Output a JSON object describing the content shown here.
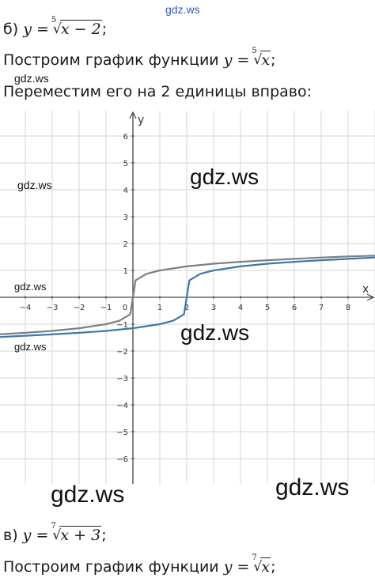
{
  "lines": {
    "b_label": "б)",
    "b_lhs": "y =",
    "b_index": "5",
    "b_radicand": "x − 2",
    "b_tail": ";",
    "step1_text": "Построим график функции",
    "step1_lhs": "y =",
    "step1_index": "5",
    "step1_radicand": "x",
    "step1_tail": ";",
    "step2_text": "Переместим его на 2 единицы вправо:",
    "v_label": "в)",
    "v_lhs": "y =",
    "v_index": "7",
    "v_radicand": "x + 3",
    "v_tail": ";",
    "step3_text": "Построим график функции",
    "step3_lhs": "y =",
    "step3_index": "7",
    "step3_radicand": "x",
    "step3_tail": ";"
  },
  "watermarks": [
    "gdz.ws",
    "gdz.ws",
    "gdz.ws",
    "gdz.ws",
    "gdz.ws",
    "gdz.ws",
    "gdz.ws",
    "gdz.ws",
    "gdz.ws"
  ],
  "chart_data": {
    "type": "line",
    "xlabel": "x",
    "ylabel": "y",
    "xlim": [
      -5,
      9
    ],
    "ylim": [
      -7,
      7
    ],
    "x_ticks": [
      -4,
      -3,
      -2,
      -1,
      0,
      1,
      2,
      3,
      4,
      5,
      6,
      7,
      8
    ],
    "y_ticks": [
      -6,
      -5,
      -4,
      -3,
      -2,
      -1,
      1,
      2,
      3,
      4,
      5,
      6
    ],
    "tick_labels_x": [
      "−4",
      "−3",
      "−2",
      "−1",
      "0",
      "1",
      "2",
      "3",
      "4",
      "5",
      "6",
      "7",
      "8"
    ],
    "tick_labels_y": [
      "−6",
      "−5",
      "−4",
      "−3",
      "−2",
      "−1",
      "1",
      "2",
      "3",
      "4",
      "5",
      "6"
    ],
    "grid": true,
    "series": [
      {
        "color": "#7f7f7f",
        "x": [
          -5,
          -4,
          -3,
          -2,
          -1,
          -0.5,
          -0.1,
          0,
          0.1,
          0.5,
          1,
          2,
          3,
          4,
          5,
          6,
          7,
          8,
          9
        ],
        "y": [
          -1.38,
          -1.32,
          -1.25,
          -1.15,
          -1.0,
          -0.87,
          -0.63,
          0,
          0.63,
          0.87,
          1.0,
          1.15,
          1.25,
          1.32,
          1.38,
          1.43,
          1.48,
          1.52,
          1.55
        ]
      },
      {
        "color": "#3b78b0",
        "x": [
          -5,
          -4,
          -3,
          -2,
          -1,
          0,
          1,
          1.5,
          1.9,
          2,
          2.1,
          2.5,
          3,
          4,
          5,
          6,
          7,
          8,
          9
        ],
        "y": [
          -1.48,
          -1.43,
          -1.38,
          -1.32,
          -1.25,
          -1.15,
          -1.0,
          -0.87,
          -0.63,
          0,
          0.63,
          0.87,
          1.0,
          1.15,
          1.25,
          1.32,
          1.38,
          1.43,
          1.48
        ]
      }
    ]
  }
}
